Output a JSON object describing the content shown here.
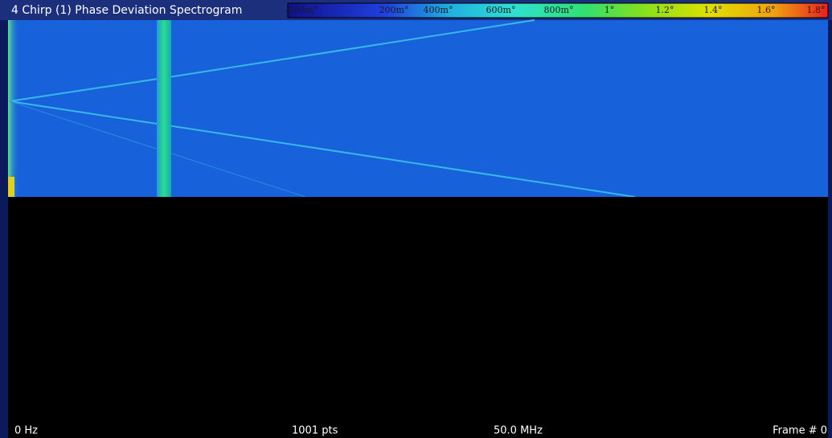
{
  "header": {
    "title": "4 Chirp (1) Phase Deviation Spectrogram"
  },
  "colorbar": {
    "labels": [
      "-200m°",
      "200m°",
      "400m°",
      "600m°",
      "800m°",
      "1°",
      "1.2°",
      "1.4°",
      "1.6°",
      "1.8°"
    ]
  },
  "footer": {
    "start": "0 Hz",
    "points": "1001 pts",
    "span": "50.0 MHz",
    "frame": "Frame # 0"
  }
}
